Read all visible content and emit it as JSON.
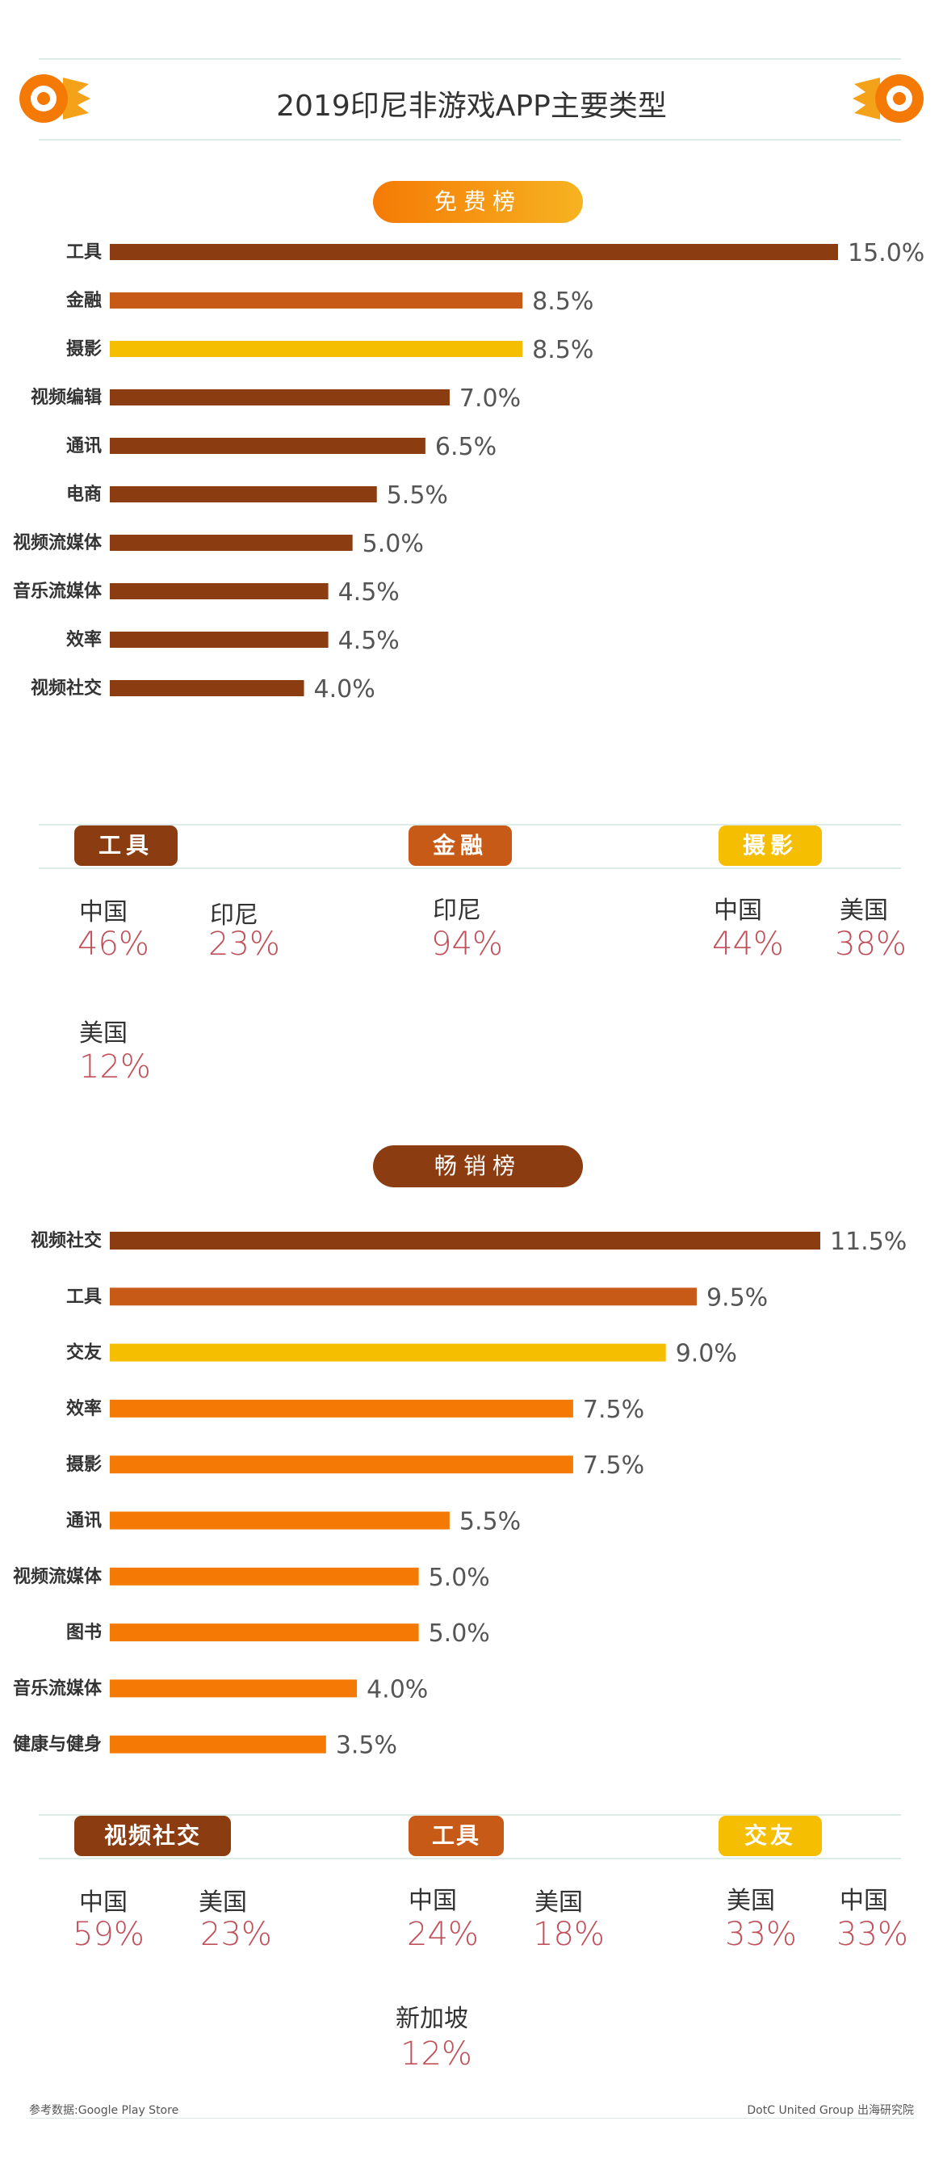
{
  "title": "2019印尼非游戏APP主要类型",
  "free_section": {
    "label": "免费榜",
    "tags": [
      "工具",
      "金融",
      "摄影"
    ],
    "stats": [
      {
        "label": "中国",
        "value": "46%"
      },
      {
        "label": "印尼",
        "value": "23%"
      },
      {
        "label": "印尼",
        "value": "94%"
      },
      {
        "label": "中国",
        "value": "44%"
      },
      {
        "label": "美国",
        "value": "38%"
      },
      {
        "label": "美国",
        "value": "12%"
      }
    ]
  },
  "grossing_section": {
    "label": "畅销榜",
    "tags": [
      "视频社交",
      "工具",
      "交友"
    ],
    "stats": [
      {
        "label": "中国",
        "value": "59%"
      },
      {
        "label": "美国",
        "value": "23%"
      },
      {
        "label": "中国",
        "value": "24%"
      },
      {
        "label": "美国",
        "value": "18%"
      },
      {
        "label": "美国",
        "value": "33%"
      },
      {
        "label": "中国",
        "value": "33%"
      },
      {
        "label": "新加坡",
        "value": "12%"
      }
    ]
  },
  "colors": {
    "dark_brown": "#8b3c10",
    "rust": "#c85a18",
    "yellow": "#f6be00",
    "orange": "#f57a05",
    "accent_red": "#c0505a",
    "line": "#dcebe6"
  },
  "chart_data": [
    {
      "type": "bar",
      "orientation": "horizontal",
      "categories": [
        "工具",
        "金融",
        "摄影",
        "视频编辑",
        "通讯",
        "电商",
        "视频流媒体",
        "音乐流媒体",
        "效率",
        "视频社交"
      ],
      "values": [
        15.0,
        8.5,
        8.5,
        7.0,
        6.5,
        5.5,
        5.0,
        4.5,
        4.5,
        4.0
      ],
      "value_labels": [
        "15.0%",
        "8.5%",
        "8.5%",
        "7.0%",
        "6.5%",
        "5.5%",
        "5.0%",
        "4.5%",
        "4.5%",
        "4.0%"
      ],
      "bar_colors": [
        "#8b3c10",
        "#c85a18",
        "#f6be00",
        "#8b3c10",
        "#8b3c10",
        "#8b3c10",
        "#8b3c10",
        "#8b3c10",
        "#8b3c10",
        "#8b3c10"
      ],
      "xlim": [
        0,
        15.0
      ]
    },
    {
      "type": "bar",
      "orientation": "horizontal",
      "categories": [
        "视频社交",
        "工具",
        "交友",
        "效率",
        "摄影",
        "通讯",
        "视频流媒体",
        "图书",
        "音乐流媒体",
        "健康与健身"
      ],
      "values": [
        11.5,
        9.5,
        9.0,
        7.5,
        7.5,
        5.5,
        5.0,
        5.0,
        4.0,
        3.5
      ],
      "value_labels": [
        "11.5%",
        "9.5%",
        "9.0%",
        "7.5%",
        "7.5%",
        "5.5%",
        "5.0%",
        "5.0%",
        "4.0%",
        "3.5%"
      ],
      "bar_colors": [
        "#8b3c10",
        "#c85a18",
        "#f6be00",
        "#f57a05",
        "#f57a05",
        "#f57a05",
        "#f57a05",
        "#f57a05",
        "#f57a05",
        "#f57a05"
      ],
      "xlim": [
        0,
        11.5
      ]
    }
  ],
  "footer": {
    "source": "参考数据:Google Play Store",
    "credit": "DotC United Group 出海研究院"
  }
}
